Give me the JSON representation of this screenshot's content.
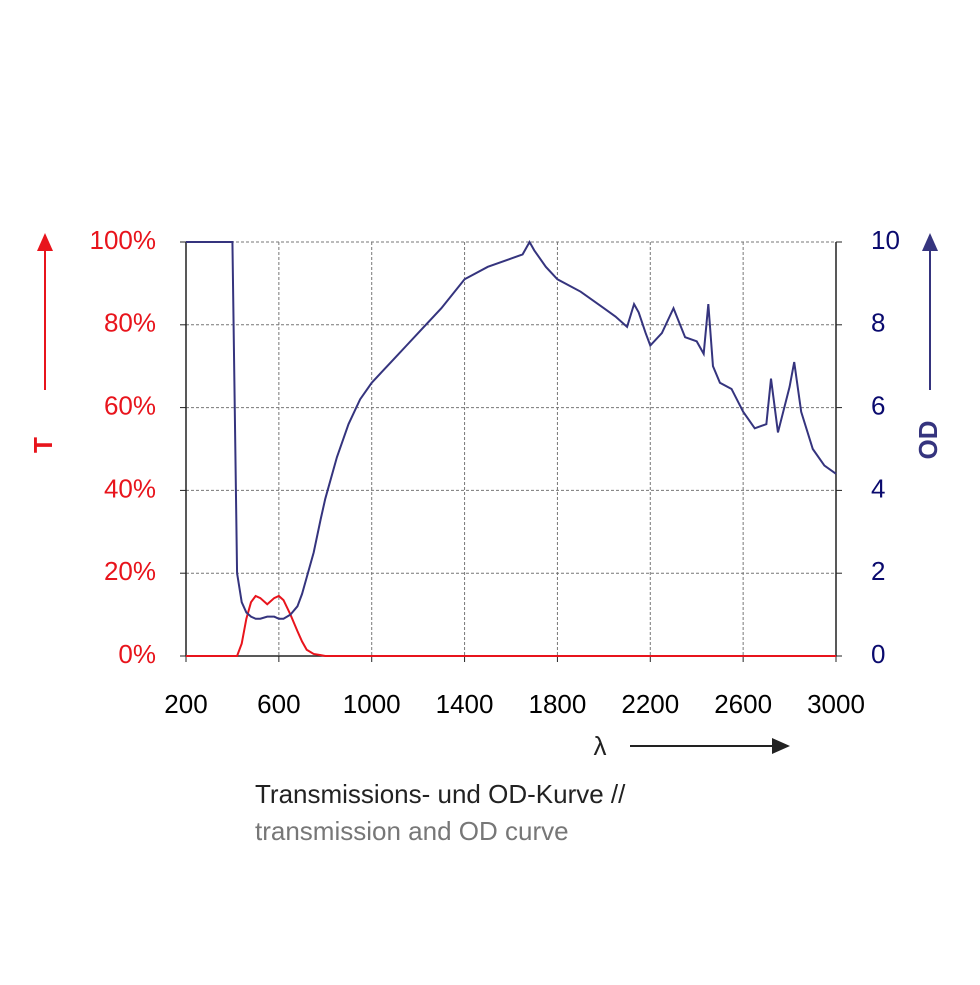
{
  "chart_data": {
    "type": "line",
    "x_label": "λ",
    "caption": [
      "Transmissions- und OD-Kurve //",
      "transmission and OD curve"
    ],
    "x": [
      200,
      300,
      400,
      420,
      440,
      460,
      480,
      500,
      520,
      550,
      580,
      600,
      620,
      650,
      680,
      700,
      720,
      750,
      780,
      800,
      850,
      900,
      950,
      1000,
      1050,
      1100,
      1150,
      1200,
      1300,
      1400,
      1500,
      1600,
      1650,
      1680,
      1700,
      1750,
      1800,
      1900,
      2000,
      2050,
      2100,
      2130,
      2150,
      2180,
      2200,
      2250,
      2300,
      2350,
      2400,
      2430,
      2450,
      2470,
      2500,
      2550,
      2600,
      2650,
      2700,
      2720,
      2750,
      2800,
      2820,
      2850,
      2900,
      2950,
      3000
    ],
    "series": [
      {
        "name": "T",
        "color": "#e8141c",
        "values": [
          0,
          0,
          0,
          0,
          3,
          9,
          13,
          14.5,
          14,
          12.5,
          14,
          14.5,
          13.5,
          10,
          6,
          3.5,
          1.5,
          0.5,
          0.2,
          0,
          0,
          0,
          0,
          0,
          0,
          0,
          0,
          0,
          0,
          0,
          0,
          0,
          0,
          0,
          0,
          0,
          0,
          0,
          0,
          0,
          0,
          0,
          0,
          0,
          0,
          0,
          0,
          0,
          0,
          0,
          0,
          0,
          0,
          0,
          0,
          0,
          0,
          0,
          0,
          0,
          0,
          0,
          0,
          0,
          0
        ]
      },
      {
        "name": "OD",
        "color": "#35347e",
        "axis": "y2",
        "values": [
          10,
          10,
          10,
          2.0,
          1.3,
          1.05,
          0.95,
          0.9,
          0.9,
          0.95,
          0.95,
          0.9,
          0.9,
          1.0,
          1.2,
          1.5,
          1.9,
          2.5,
          3.3,
          3.8,
          4.8,
          5.6,
          6.2,
          6.6,
          6.9,
          7.2,
          7.5,
          7.8,
          8.4,
          9.1,
          9.4,
          9.6,
          9.7,
          10.0,
          9.8,
          9.4,
          9.1,
          8.8,
          8.4,
          8.2,
          7.95,
          8.5,
          8.3,
          7.8,
          7.5,
          7.8,
          8.4,
          7.7,
          7.6,
          7.3,
          8.5,
          7.0,
          6.6,
          6.45,
          5.9,
          5.5,
          5.6,
          6.7,
          5.4,
          6.5,
          7.1,
          5.9,
          5.0,
          4.6,
          4.4
        ]
      }
    ],
    "xlim": [
      200,
      3000
    ],
    "xticks": [
      200,
      600,
      1000,
      1400,
      1800,
      2200,
      2600,
      3000
    ],
    "ylim": [
      0,
      100
    ],
    "yticks": [
      {
        "value": 0,
        "label": "0%"
      },
      {
        "value": 20,
        "label": "20%"
      },
      {
        "value": 40,
        "label": "40%"
      },
      {
        "value": 60,
        "label": "60%"
      },
      {
        "value": 80,
        "label": "80%"
      },
      {
        "value": 100,
        "label": "100%"
      }
    ],
    "y2lim": [
      0,
      10
    ],
    "y2ticks": [
      0,
      2,
      4,
      6,
      8,
      10
    ],
    "grid": true
  }
}
